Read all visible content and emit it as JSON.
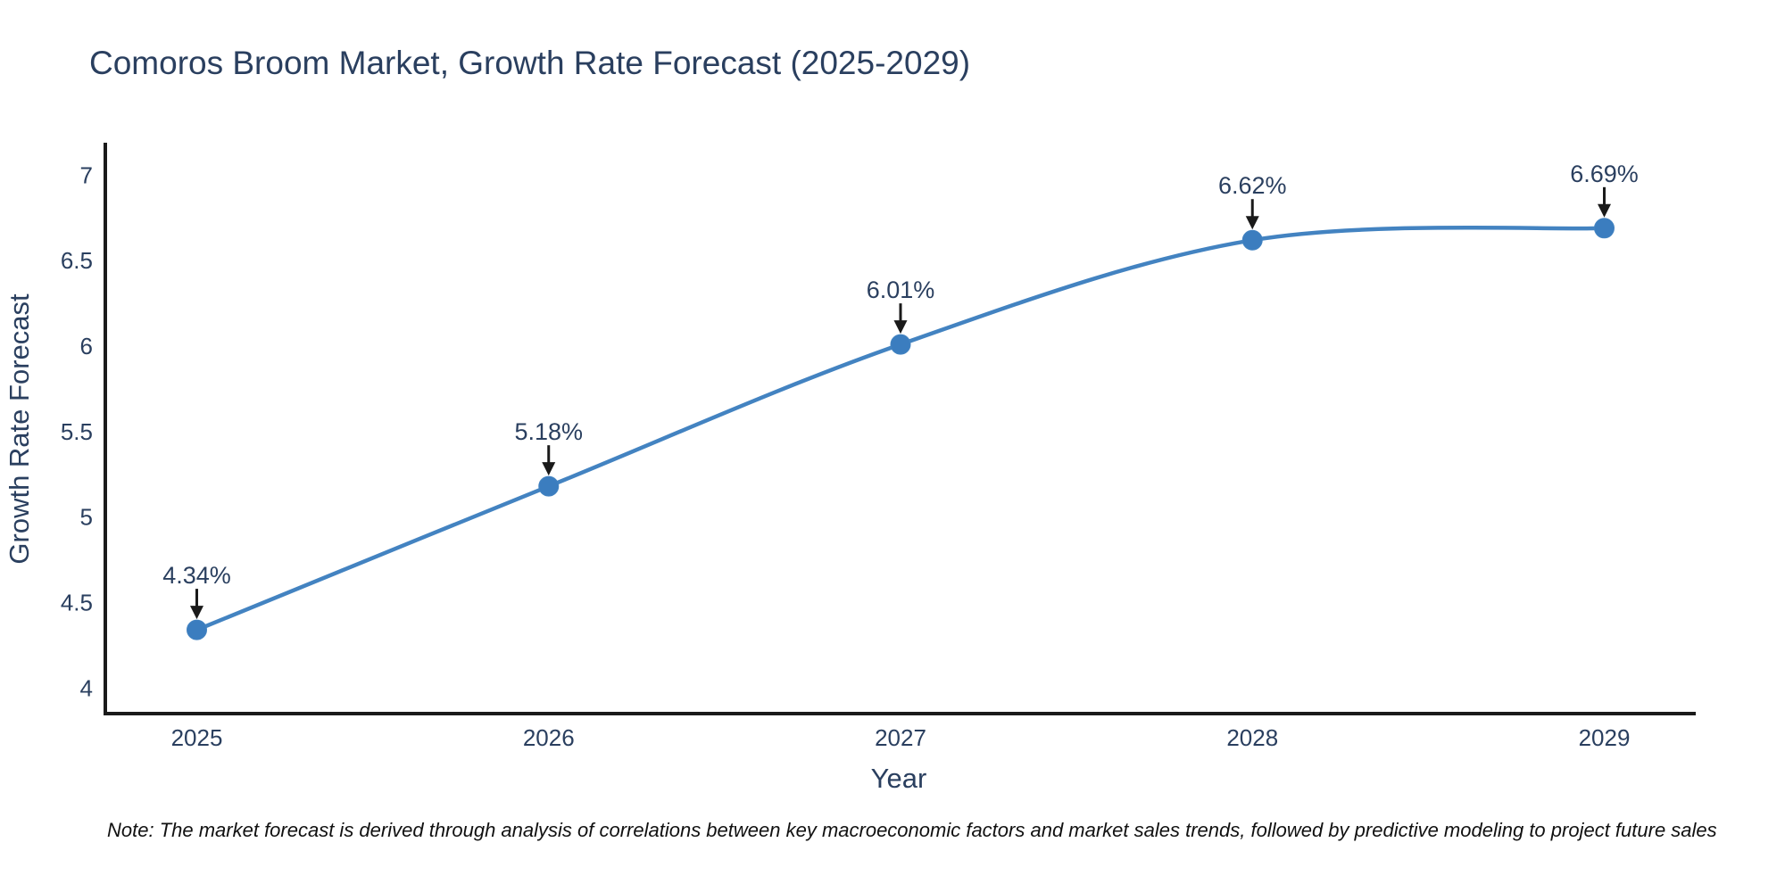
{
  "page": {
    "note": "Note: The market forecast is derived through analysis of correlations between key macroeconomic factors and market sales trends, followed by predictive modeling to project future sales"
  },
  "chart_data": {
    "type": "line",
    "title": "Comoros Broom Market, Growth Rate Forecast (2025-2029)",
    "xlabel": "Year",
    "ylabel": "Growth Rate Forecast",
    "x": [
      2025,
      2026,
      2027,
      2028,
      2029
    ],
    "series": [
      {
        "name": "Growth Rate Forecast",
        "values": [
          4.34,
          5.18,
          6.01,
          6.62,
          6.69
        ]
      }
    ],
    "point_labels": [
      "4.34%",
      "5.18%",
      "6.01%",
      "6.62%",
      "6.69%"
    ],
    "xticks": [
      "2025",
      "2026",
      "2027",
      "2028",
      "2029"
    ],
    "yticks": [
      4,
      4.5,
      5,
      5.5,
      6,
      6.5,
      7
    ],
    "xlim": [
      2024.74,
      2029.26
    ],
    "ylim": [
      3.85,
      7.19
    ],
    "line_shape": "spline",
    "grid": false,
    "legend": false,
    "colors": {
      "line": "#4383c1",
      "marker": "#3b7dbf",
      "axis": "#1a1a1a",
      "tick_text": "#2a3f5f",
      "annotation_text": "#2a3f5f",
      "annotation_arrow": "#1a1a1a",
      "background": "#ffffff"
    }
  }
}
